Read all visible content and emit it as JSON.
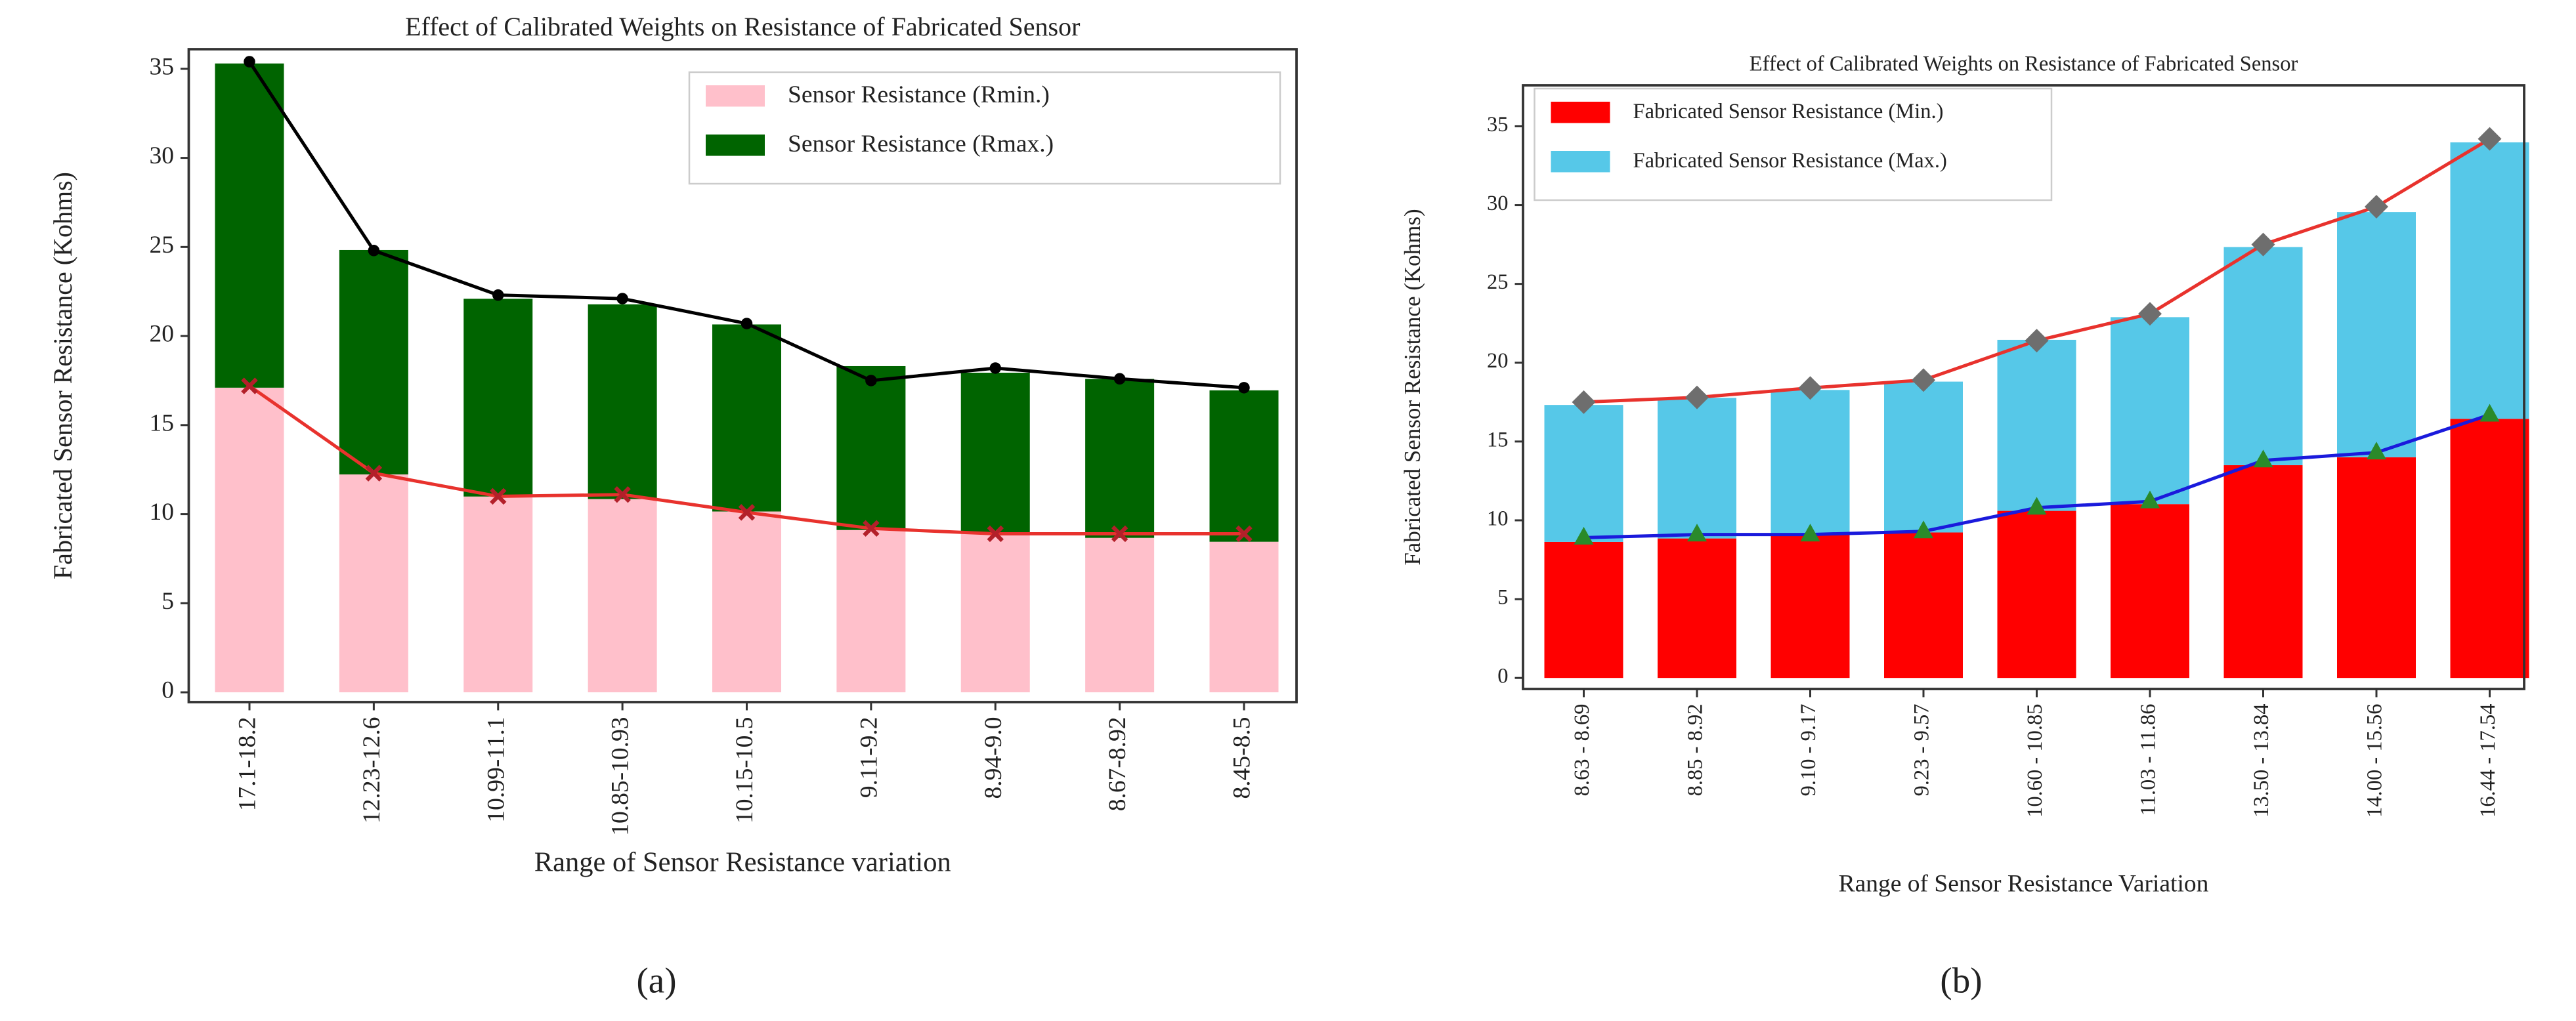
{
  "chart_data": [
    {
      "type": "bar",
      "stacked": true,
      "title": "Effect of Calibrated Weights on Resistance of Fabricated Sensor",
      "xlabel": "Range of  Sensor Resistance variation",
      "ylabel": "Fabricated Sensor Resistance (Kohms)",
      "caption": "(a)",
      "categories": [
        "17.1-18.2",
        "12.23-12.6",
        "10.99-11.1",
        "10.85-10.93",
        "10.15-10.5",
        "9.11-9.2",
        "8.94-9.0",
        "8.67-8.92",
        "8.45-8.5"
      ],
      "series": [
        {
          "name": "Sensor Resistance (Rmin.)",
          "color": "#ffc0cb",
          "values": [
            17.1,
            12.23,
            10.99,
            10.85,
            10.15,
            9.11,
            8.94,
            8.67,
            8.45
          ]
        },
        {
          "name": "Sensor Resistance (Rmax.)",
          "color": "#006400",
          "values": [
            18.2,
            12.6,
            11.1,
            10.93,
            10.5,
            9.2,
            9.0,
            8.92,
            8.5
          ]
        }
      ],
      "lines": [
        {
          "color": "#000000",
          "marker": "dot",
          "values": [
            35.4,
            24.8,
            22.3,
            22.1,
            20.7,
            17.5,
            18.2,
            17.6,
            17.1
          ]
        },
        {
          "color": "#e8322d",
          "marker": "x",
          "values": [
            17.2,
            12.3,
            11.0,
            11.1,
            10.1,
            9.2,
            8.9,
            8.9,
            8.9
          ]
        }
      ],
      "ylim": [
        -0.55,
        36.1
      ],
      "yticks": [
        0,
        5,
        10,
        15,
        20,
        25,
        30,
        35
      ],
      "legend": "upper right"
    },
    {
      "type": "bar",
      "stacked": true,
      "title": "Effect of Calibrated Weights on Resistance of Fabricated Sensor",
      "xlabel": "Range of Sensor Resistance Variation",
      "ylabel": "Fabricated Sensor Resistance (Kohms)",
      "caption": "(b)",
      "categories": [
        "8.63 - 8.69",
        "8.85 - 8.92",
        "9.10 - 9.17",
        "9.23 - 9.57",
        "10.60 - 10.85",
        "11.03 - 11.86",
        "13.50 - 13.84",
        "14.00 - 15.56",
        "16.44 - 17.54"
      ],
      "series": [
        {
          "name": "Fabricated Sensor Resistance (Min.)",
          "color": "#ff0000",
          "values": [
            8.63,
            8.85,
            9.1,
            9.23,
            10.6,
            11.03,
            13.5,
            14.0,
            16.44
          ]
        },
        {
          "name": "Fabricated Sensor Resistance (Max.)",
          "color": "#56c8e8",
          "values": [
            8.69,
            8.92,
            9.17,
            9.57,
            10.85,
            11.86,
            13.84,
            15.56,
            17.54
          ]
        }
      ],
      "lines": [
        {
          "color": "#e8322d",
          "marker": "diamond",
          "values": [
            17.5,
            17.8,
            18.4,
            18.9,
            21.4,
            23.1,
            27.5,
            29.9,
            34.2
          ]
        },
        {
          "color": "#1a1adc",
          "marker": "triangle",
          "values": [
            8.9,
            9.1,
            9.1,
            9.3,
            10.8,
            11.2,
            13.8,
            14.3,
            16.7
          ]
        }
      ],
      "ylim": [
        -0.7,
        37.6
      ],
      "yticks": [
        0,
        5,
        10,
        15,
        20,
        25,
        30,
        35
      ],
      "legend": "upper left"
    }
  ]
}
